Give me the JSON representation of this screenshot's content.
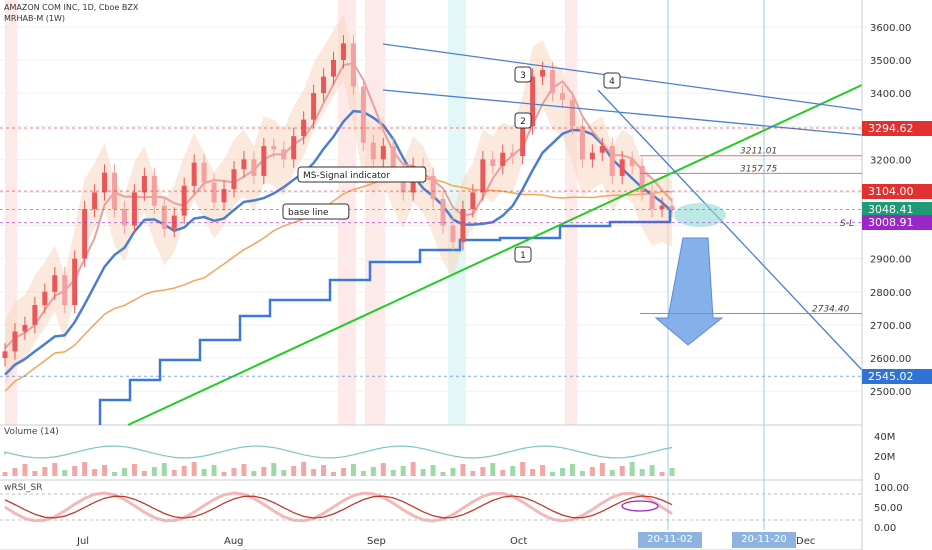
{
  "header": {
    "symbol": "AMAZON COM INC, 1D, Cboe BZX",
    "study": "MRHAB-M (1W)"
  },
  "colors": {
    "up": "#e8575a",
    "down": "#f2a0a2",
    "cloud": "#f5d7c0",
    "blue_line": "#4a7fd0",
    "green_line": "#22cc22",
    "orange_line": "#f2a65a",
    "trend": "#4a7fd0",
    "price_tag_red": "#e03030",
    "price_tag_green": "#1e9a77",
    "price_tag_purple": "#9b27c8",
    "price_tag_blue": "#2f73d6"
  },
  "chart_data": {
    "type": "line",
    "title": "AMAZON COM INC, 1D, Cboe BZX",
    "x_ticks": [
      "Jul",
      "Aug",
      "Sep",
      "Oct",
      "20-11-02",
      "20-11-20",
      "Dec"
    ],
    "y_ticks": [
      "3600.00",
      "3500.00",
      "3400.00",
      "3300.00",
      "3200.00",
      "3100.00",
      "3000.00",
      "2900.00",
      "2800.00",
      "2700.00",
      "2600.00",
      "2500.00"
    ],
    "ylim": [
      2450,
      3650
    ],
    "price_labels": [
      {
        "value": 3294.62,
        "text": "3294.62",
        "color": "#e03030"
      },
      {
        "value": 3104.0,
        "text": "3104.00",
        "color": "#e03030"
      },
      {
        "value": 3048.41,
        "text": "3048.41",
        "color": "#1e9a77"
      },
      {
        "value": 3008.91,
        "text": "3008.91",
        "color": "#9b27c8"
      },
      {
        "value": 2545.02,
        "text": "2545.02",
        "color": "#2f73d6"
      }
    ],
    "level_notes": [
      {
        "value": 3211.01,
        "text": "3211.01"
      },
      {
        "value": 3157.75,
        "text": "3157.75"
      },
      {
        "value": 2734.4,
        "text": "2734.40"
      }
    ],
    "annotations": [
      {
        "text": "MS-Signal indicator"
      },
      {
        "text": "base line"
      },
      {
        "text": "1"
      },
      {
        "text": "2"
      },
      {
        "text": "3"
      },
      {
        "text": "4"
      },
      {
        "text": "S-L"
      }
    ],
    "series": [
      {
        "values": [
          2620,
          2680,
          2700,
          2760,
          2800,
          2850,
          2760,
          2900,
          3050,
          3100,
          3160,
          3050,
          3000,
          3100,
          3150,
          3060,
          2990,
          3030,
          3120,
          3190,
          3130,
          3070,
          3110,
          3170,
          3200,
          3150,
          3240,
          3230,
          3200,
          3270,
          3320,
          3400,
          3450,
          3500,
          3550,
          3420,
          3250,
          3200,
          3240,
          3160,
          3100,
          3180,
          3150,
          3080,
          3000,
          2950,
          3050,
          3100,
          3200,
          3180,
          3220,
          3210,
          3300,
          3450,
          3470,
          3400,
          3380,
          3300,
          3200,
          3220,
          3240,
          3150,
          3200,
          3180,
          3100,
          3050,
          3060,
          3048
        ]
      }
    ],
    "volume_panel": {
      "title": "Volume (14)",
      "y_ticks": [
        "40M",
        "20M",
        "0"
      ]
    },
    "rsi_panel": {
      "title": "wRSI_SR",
      "y_ticks": [
        "100.00",
        "50.00",
        "0.00"
      ]
    }
  }
}
